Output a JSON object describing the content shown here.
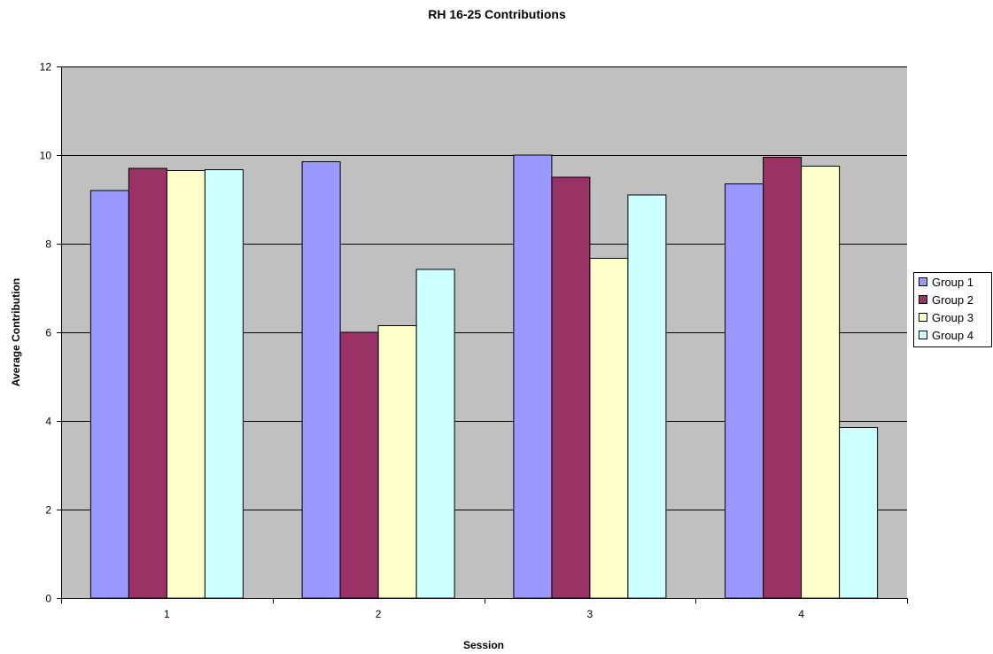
{
  "chart_data": {
    "type": "bar",
    "title": "RH 16-25 Contributions",
    "xlabel": "Session",
    "ylabel": "Average Contribution",
    "categories": [
      "1",
      "2",
      "3",
      "4"
    ],
    "ylim": [
      0,
      12
    ],
    "yticks": [
      0,
      2,
      4,
      6,
      8,
      10,
      12
    ],
    "grid": true,
    "legend_position": "right",
    "plot_background": "#c0c0c0",
    "series": [
      {
        "name": "Group 1",
        "color": "#9999ff",
        "values": [
          9.2,
          9.85,
          10.0,
          9.35
        ]
      },
      {
        "name": "Group 2",
        "color": "#993366",
        "values": [
          9.7,
          6.0,
          9.5,
          9.95
        ]
      },
      {
        "name": "Group 3",
        "color": "#ffffcc",
        "values": [
          9.65,
          6.15,
          7.67,
          9.75
        ]
      },
      {
        "name": "Group 4",
        "color": "#ccffff",
        "values": [
          9.67,
          7.42,
          9.1,
          3.85
        ]
      }
    ]
  }
}
